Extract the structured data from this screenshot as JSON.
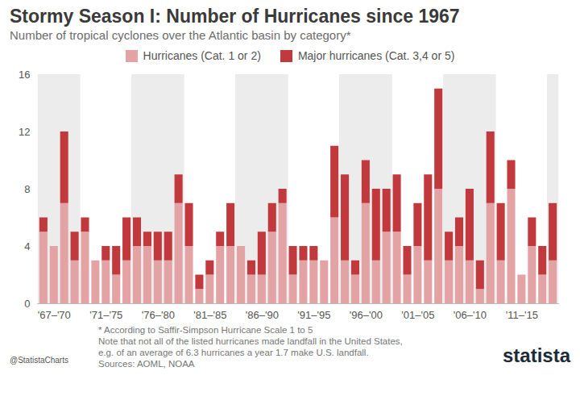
{
  "chart_data": {
    "type": "bar",
    "stacked": true,
    "title": "Stormy Season I: Number of Hurricanes since 1967",
    "subtitle": "Number of tropical cyclones over the Atlantic basin by category*",
    "categories": [
      null,
      "'67–'70",
      null,
      null,
      null,
      null,
      "'71–'75",
      null,
      null,
      null,
      null,
      "'76–'80",
      null,
      null,
      null,
      null,
      "'81–'85",
      null,
      null,
      null,
      null,
      "'86–'90",
      null,
      null,
      null,
      null,
      "'91–'95",
      null,
      null,
      null,
      null,
      "'96–'00",
      null,
      null,
      null,
      null,
      "'01–'05",
      null,
      null,
      null,
      null,
      "'06–'10",
      null,
      null,
      null,
      null,
      "'11–'15",
      null,
      null,
      null
    ],
    "series": [
      {
        "name": "Hurricanes (Cat. 1 or 2)",
        "color": "#e3a3a5",
        "values": [
          5,
          4,
          7,
          3,
          5,
          3,
          3,
          2,
          3,
          4,
          4,
          3,
          3,
          7,
          4,
          1,
          2,
          4,
          4,
          4,
          2,
          2,
          5,
          7,
          2,
          3,
          3,
          3,
          6,
          3,
          2,
          7,
          3,
          5,
          5,
          2,
          4,
          3,
          8,
          3,
          4,
          3,
          1,
          7,
          3,
          8,
          2,
          4,
          2,
          3
        ]
      },
      {
        "name": "Major hurricanes (Cat. 3,4 or 5)",
        "color": "#c1393c",
        "values": [
          1,
          0,
          5,
          2,
          1,
          0,
          1,
          2,
          3,
          2,
          1,
          2,
          2,
          2,
          3,
          1,
          1,
          1,
          3,
          0,
          1,
          3,
          2,
          1,
          2,
          1,
          1,
          0,
          5,
          6,
          1,
          3,
          5,
          3,
          4,
          2,
          3,
          6,
          7,
          2,
          2,
          5,
          2,
          5,
          4,
          2,
          0,
          2,
          2,
          4
        ]
      }
    ],
    "ylim": [
      0,
      16
    ],
    "yticks": [
      0,
      4,
      8,
      12,
      16
    ],
    "grid": false,
    "legend": "top",
    "notes": [
      "* According to Saffir-Simpson Hurricane Scale 1 to 5",
      "Note that not all of the listed hurricanes made landfall in the United States,",
      "e.g. of an average of 6.3 hurricanes a year 1.7 make U.S. landfall.",
      "Sources: AOML, NOAA"
    ],
    "credit": "@StatistaCharts",
    "logo": "statista"
  }
}
